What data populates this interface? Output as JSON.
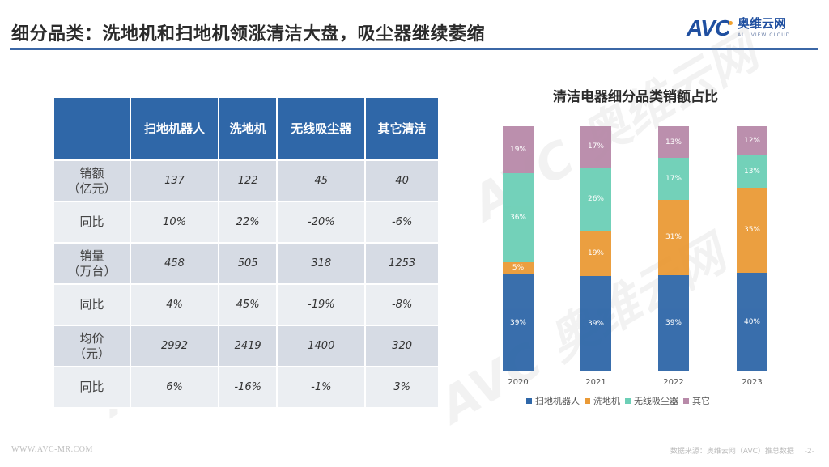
{
  "header": {
    "title": "细分品类：洗地机和扫地机领涨清洁大盘，吸尘器继续萎缩",
    "logo": {
      "mark": "AVC",
      "cn": "奥维云网",
      "en": "ALL VIEW CLOUD"
    }
  },
  "table": {
    "columns": [
      "",
      "扫地机器人",
      "洗地机",
      "无线吸尘器",
      "其它清洁"
    ],
    "rows": [
      {
        "label": "销额\n（亿元）",
        "label_line1": "销额",
        "label_line2": "（亿元）",
        "values": [
          "137",
          "122",
          "45",
          "40"
        ]
      },
      {
        "label": "同比",
        "label_line1": "同比",
        "label_line2": "",
        "values": [
          "10%",
          "22%",
          "-20%",
          "-6%"
        ]
      },
      {
        "label": "销量\n（万台）",
        "label_line1": "销量",
        "label_line2": "（万台）",
        "values": [
          "458",
          "505",
          "318",
          "1253"
        ]
      },
      {
        "label": "同比",
        "label_line1": "同比",
        "label_line2": "",
        "values": [
          "4%",
          "45%",
          "-19%",
          "-8%"
        ]
      },
      {
        "label": "均价\n（元）",
        "label_line1": "均价",
        "label_line2": "（元）",
        "values": [
          "2992",
          "2419",
          "1400",
          "320"
        ]
      },
      {
        "label": "同比",
        "label_line1": "同比",
        "label_line2": "",
        "values": [
          "6%",
          "-16%",
          "-1%",
          "3%"
        ]
      }
    ]
  },
  "colors": {
    "robot": "#2f67a8",
    "washer": "#ea9a36",
    "vacuum": "#6ccfb6",
    "other": "#b88aa9",
    "table_header": "#2f67a8",
    "title_rule": "#3b67a6"
  },
  "chart_data": {
    "type": "bar",
    "stacked": true,
    "percent": true,
    "title": "清洁电器细分品类销额占比",
    "categories": [
      "2020",
      "2021",
      "2022",
      "2023"
    ],
    "series": [
      {
        "name": "扫地机器人",
        "color": "#2f67a8",
        "values": [
          39,
          39,
          39,
          40
        ],
        "labels": [
          "39%",
          "39%",
          "39%",
          "40%"
        ]
      },
      {
        "name": "洗地机",
        "color": "#ea9a36",
        "values": [
          5,
          19,
          31,
          35
        ],
        "labels": [
          "5%",
          "19%",
          "31%",
          "35%"
        ]
      },
      {
        "name": "无线吸尘器",
        "color": "#6ccfb6",
        "values": [
          36,
          26,
          17,
          13
        ],
        "labels": [
          "36%",
          "26%",
          "17%",
          "13%"
        ]
      },
      {
        "name": "其它",
        "color": "#b88aa9",
        "values": [
          19,
          17,
          13,
          12
        ],
        "labels": [
          "19%",
          "17%",
          "13%",
          "12%"
        ]
      }
    ],
    "xlabel": "",
    "ylabel": "",
    "ylim": [
      0,
      100
    ],
    "grid": false,
    "legend_position": "bottom"
  },
  "footer": {
    "website": "WWW.AVC-MR.COM",
    "source": "数据来源：奥维云网（AVC）推总数据",
    "page": "-2-"
  }
}
